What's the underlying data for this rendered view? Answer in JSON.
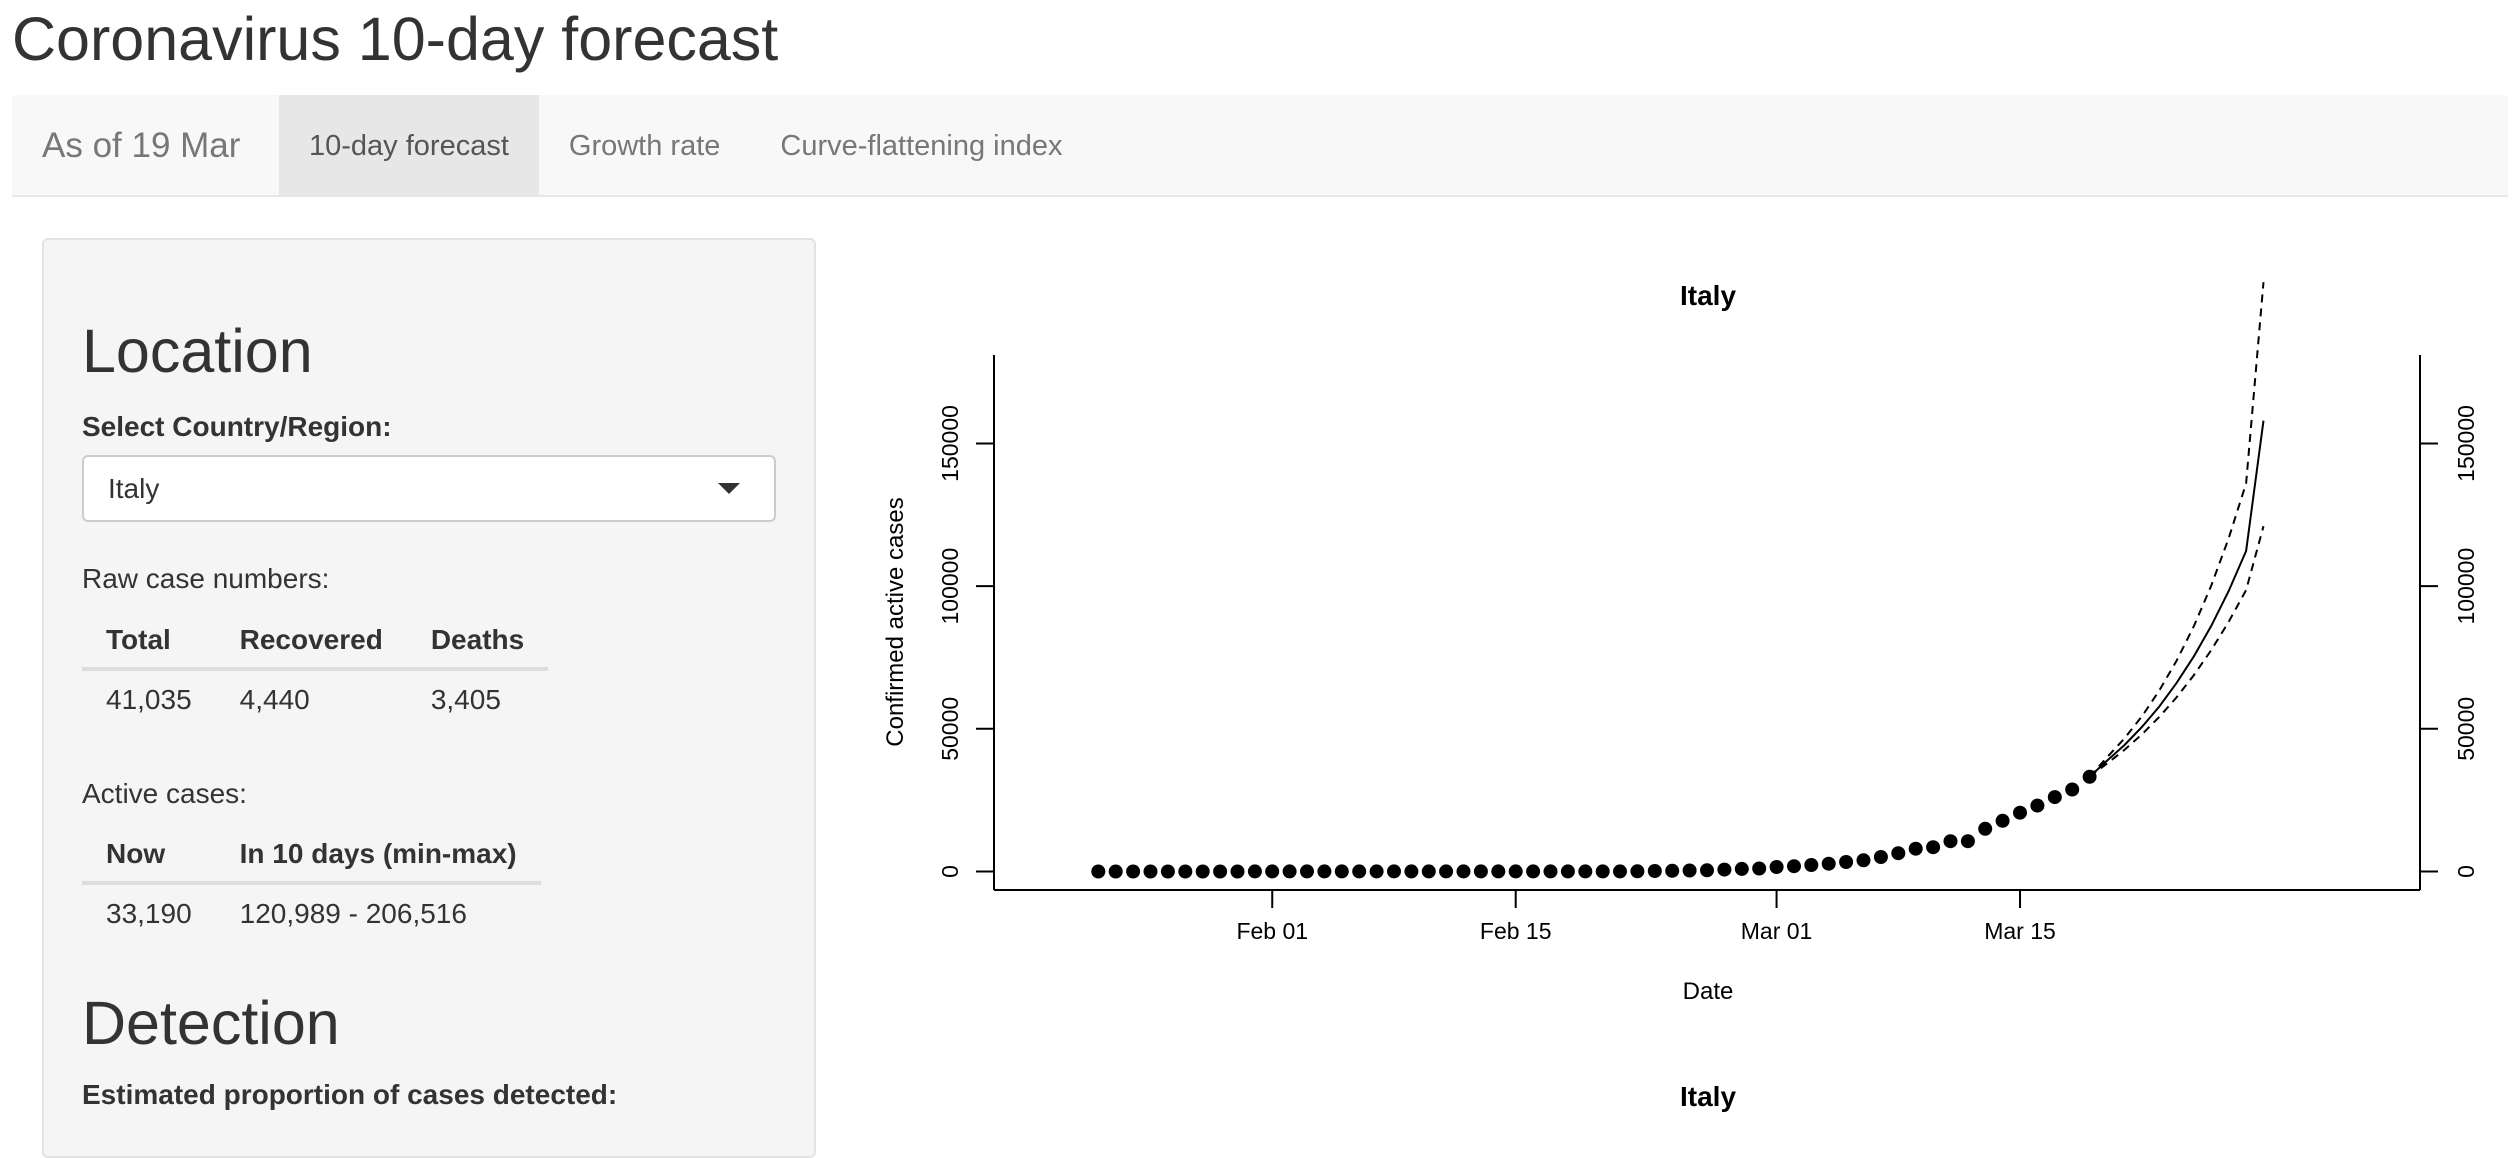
{
  "app": {
    "title": "Coronavirus 10-day forecast"
  },
  "nav": {
    "brand": "As of 19 Mar",
    "tabs": [
      {
        "label": "10-day forecast",
        "active": true
      },
      {
        "label": "Growth rate",
        "active": false
      },
      {
        "label": "Curve-flattening index",
        "active": false
      }
    ]
  },
  "sidebar": {
    "location_heading": "Location",
    "select_label": "Select Country/Region:",
    "select_value": "Italy",
    "raw_label": "Raw case numbers:",
    "raw_table": {
      "headers": [
        "Total",
        "Recovered",
        "Deaths"
      ],
      "row": [
        "41,035",
        "4,440",
        "3,405"
      ]
    },
    "active_label": "Active cases:",
    "active_table": {
      "headers": [
        "Now",
        "In 10 days (min-max)"
      ],
      "row": [
        "33,190",
        "120,989 - 206,516"
      ]
    },
    "detection_heading": "Detection",
    "detection_label": "Estimated proportion of cases detected:"
  },
  "plots": [
    {
      "title": "Italy"
    },
    {
      "title": "Italy"
    }
  ],
  "chart_data": [
    {
      "type": "scatter",
      "title": "Italy",
      "xlabel": "Date",
      "ylabel": "Confirmed active cases",
      "x_ticks": [
        "Feb 01",
        "Feb 15",
        "Mar 01",
        "Mar 15"
      ],
      "y_ticks": [
        "0",
        "50000",
        "100000",
        "150000"
      ],
      "right_axis": true,
      "ylim": [
        -6500,
        181000
      ],
      "xlim": [
        "2020-01-16",
        "2020-04-07"
      ],
      "observed": {
        "x": [
          "2020-01-22",
          "2020-01-23",
          "2020-01-24",
          "2020-01-25",
          "2020-01-26",
          "2020-01-27",
          "2020-01-28",
          "2020-01-29",
          "2020-01-30",
          "2020-01-31",
          "2020-02-01",
          "2020-02-02",
          "2020-02-03",
          "2020-02-04",
          "2020-02-05",
          "2020-02-06",
          "2020-02-07",
          "2020-02-08",
          "2020-02-09",
          "2020-02-10",
          "2020-02-11",
          "2020-02-12",
          "2020-02-13",
          "2020-02-14",
          "2020-02-15",
          "2020-02-16",
          "2020-02-17",
          "2020-02-18",
          "2020-02-19",
          "2020-02-20",
          "2020-02-21",
          "2020-02-22",
          "2020-02-23",
          "2020-02-24",
          "2020-02-25",
          "2020-02-26",
          "2020-02-27",
          "2020-02-28",
          "2020-02-29",
          "2020-03-01",
          "2020-03-02",
          "2020-03-03",
          "2020-03-04",
          "2020-03-05",
          "2020-03-06",
          "2020-03-07",
          "2020-03-08",
          "2020-03-09",
          "2020-03-10",
          "2020-03-11",
          "2020-03-12",
          "2020-03-13",
          "2020-03-14",
          "2020-03-15",
          "2020-03-16",
          "2020-03-17",
          "2020-03-18",
          "2020-03-19"
        ],
        "y": [
          0,
          0,
          0,
          0,
          0,
          0,
          0,
          0,
          0,
          2,
          2,
          2,
          2,
          2,
          2,
          2,
          3,
          3,
          3,
          3,
          3,
          3,
          3,
          3,
          3,
          3,
          3,
          3,
          3,
          3,
          20,
          62,
          155,
          229,
          322,
          400,
          650,
          888,
          1049,
          1577,
          1835,
          2263,
          2706,
          3296,
          3916,
          5061,
          6387,
          7985,
          8514,
          10590,
          10590,
          14955,
          17750,
          20603,
          23073,
          26062,
          28710,
          33190
        ]
      },
      "forecast": {
        "x": [
          "2020-03-20",
          "2020-03-21",
          "2020-03-22",
          "2020-03-23",
          "2020-03-24",
          "2020-03-25",
          "2020-03-26",
          "2020-03-27",
          "2020-03-28",
          "2020-03-29"
        ],
        "mid": [
          38800,
          44300,
          50600,
          57700,
          66000,
          75400,
          86100,
          98300,
          112300,
          158000
        ],
        "lower": [
          37800,
          42600,
          48000,
          54100,
          61000,
          68800,
          77600,
          87500,
          98600,
          120989
        ],
        "upper": [
          40000,
          46600,
          54300,
          63300,
          73800,
          86000,
          100200,
          116800,
          136000,
          206516
        ]
      }
    },
    {
      "title": "Italy"
    }
  ]
}
